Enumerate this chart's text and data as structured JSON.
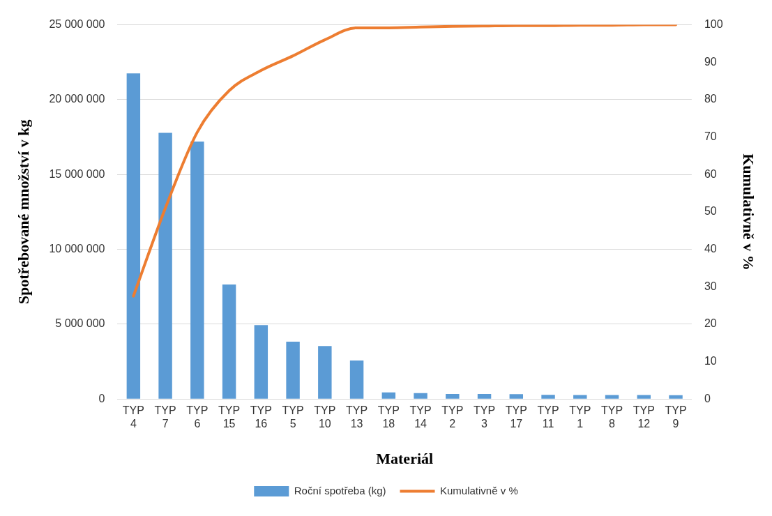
{
  "chart_data": {
    "type": "bar",
    "xlabel": "Materiál",
    "ylabel": "Spotřebované množství v kg",
    "y2label": "Kumulativně v %",
    "categories": [
      "TYP 4",
      "TYP 7",
      "TYP 6",
      "TYP 15",
      "TYP 16",
      "TYP 5",
      "TYP 10",
      "TYP 13",
      "TYP 18",
      "TYP 14",
      "TYP 2",
      "TYP 3",
      "TYP 17",
      "TYP 11",
      "TYP 1",
      "TYP 8",
      "TYP 12",
      "TYP 9"
    ],
    "series": [
      {
        "name": "Roční spotřeba (kg)",
        "color": "#5b9bd5",
        "values": [
          21750000,
          17780000,
          17200000,
          7650000,
          4940000,
          3830000,
          3540000,
          2570000,
          440000,
          390000,
          340000,
          330000,
          320000,
          280000,
          270000,
          260000,
          260000,
          250000
        ]
      },
      {
        "name": "Kumulativně v %",
        "type": "line",
        "axis": "y2",
        "color": "#ed7d31",
        "marker": "none",
        "values": [
          27.5,
          51,
          71.3,
          82.4,
          87.8,
          91.7,
          96,
          99.2,
          99.2,
          99.4,
          99.6,
          99.7,
          99.8,
          99.8,
          99.9,
          99.9,
          100,
          100
        ]
      }
    ],
    "ylim": [
      0,
      25000000
    ],
    "yticks": [
      {
        "value": 0,
        "label": "0"
      },
      {
        "value": 5000000,
        "label": "5 000 000"
      },
      {
        "value": 10000000,
        "label": "10 000 000"
      },
      {
        "value": 15000000,
        "label": "15 000 000"
      },
      {
        "value": 20000000,
        "label": "20 000 000"
      },
      {
        "value": 25000000,
        "label": "25 000 000"
      }
    ],
    "y2lim": [
      0,
      100
    ],
    "y2ticks": [
      0,
      10,
      20,
      30,
      40,
      50,
      60,
      70,
      80,
      90,
      100
    ],
    "grid": "y",
    "legend": "bottom"
  }
}
